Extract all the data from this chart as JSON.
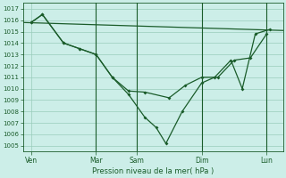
{
  "xlabel": "Pression niveau de la mer( hPa )",
  "bg_color": "#cceee8",
  "grid_color": "#99ccbb",
  "line_color": "#1a5c2a",
  "ylim": [
    1004.5,
    1017.5
  ],
  "yticks": [
    1005,
    1006,
    1007,
    1008,
    1009,
    1010,
    1011,
    1012,
    1013,
    1014,
    1015,
    1016,
    1017
  ],
  "xlim": [
    0,
    16
  ],
  "xtick_labels": [
    "Ven",
    "Mar",
    "Sam",
    "Dim",
    "Lun"
  ],
  "xtick_positions": [
    0.5,
    4.5,
    7.0,
    11.0,
    15.0
  ],
  "vlines": [
    4.5,
    7.0,
    11.0,
    15.0
  ],
  "line1_x": [
    0,
    16
  ],
  "line1_y": [
    1015.8,
    1015.1
  ],
  "line2_x": [
    0.5,
    1.2,
    2.5,
    3.5,
    4.5,
    5.5,
    6.5,
    7.5,
    9.0,
    10.0,
    11.0,
    12.0,
    13.0,
    14.0,
    15.0
  ],
  "line2_y": [
    1015.8,
    1016.5,
    1014.0,
    1013.5,
    1013.0,
    1011.0,
    1009.8,
    1009.7,
    1009.2,
    1010.3,
    1011.0,
    1011.0,
    1012.5,
    1012.7,
    1014.8
  ],
  "line3_x": [
    0.5,
    1.2,
    2.5,
    3.5,
    4.5,
    5.5,
    6.5,
    7.5,
    8.2,
    8.8,
    9.8,
    11.0,
    11.8,
    12.8,
    13.5,
    14.3,
    15.2
  ],
  "line3_y": [
    1015.8,
    1016.5,
    1014.0,
    1013.5,
    1013.0,
    1011.0,
    1009.5,
    1007.5,
    1006.6,
    1005.2,
    1008.0,
    1010.5,
    1011.0,
    1012.5,
    1010.0,
    1014.8,
    1015.2
  ]
}
